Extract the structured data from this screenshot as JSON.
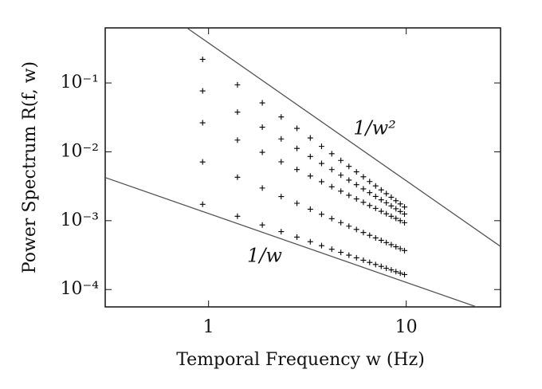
{
  "chart_data": {
    "type": "scatter",
    "x_label": "Temporal Frequency w (Hz)",
    "y_label": "Power Spectrum R(f, w)",
    "log_x": true,
    "log_y": true,
    "xlim": [
      0.3,
      30
    ],
    "ylim": [
      5.6e-05,
      0.63
    ],
    "xticks": [
      1,
      10
    ],
    "yticks": [
      {
        "value": 0.1,
        "label": "10⁻¹"
      },
      {
        "value": 0.01,
        "label": "10⁻²"
      },
      {
        "value": 0.001,
        "label": "10⁻³"
      },
      {
        "value": 0.0001,
        "label": "10⁻⁴"
      }
    ],
    "marker": "+",
    "x": [
      0.933,
      1.4,
      1.87,
      2.33,
      2.8,
      3.27,
      3.73,
      4.2,
      4.67,
      5.13,
      5.6,
      6.07,
      6.53,
      7,
      7.47,
      7.93,
      8.4,
      8.87,
      9.33,
      9.8
    ],
    "series": [
      {
        "color": "#000000",
        "values": [
          0.22,
          0.094,
          0.0514,
          0.0321,
          0.0219,
          0.0159,
          0.012,
          0.00938,
          0.0075,
          0.00615,
          0.00512,
          0.00433,
          0.0037,
          0.0032,
          0.0028,
          0.00247,
          0.00219,
          0.00195,
          0.00175,
          0.00158
        ]
      },
      {
        "color": "#000000",
        "values": [
          0.0766,
          0.0377,
          0.0228,
          0.0154,
          0.0112,
          0.00855,
          0.00678,
          0.00552,
          0.00458,
          0.00388,
          0.00333,
          0.0029,
          0.00255,
          0.00225,
          0.00201,
          0.00182,
          0.00164,
          0.00149,
          0.00136,
          0.00125
        ]
      },
      {
        "color": "#000000",
        "values": [
          0.0264,
          0.0148,
          0.00984,
          0.00716,
          0.00553,
          0.00445,
          0.00368,
          0.00311,
          0.00268,
          0.00234,
          0.00207,
          0.00185,
          0.00166,
          0.00151,
          0.00137,
          0.00126,
          0.00116,
          0.00108,
          0.001,
          0.000935
        ]
      },
      {
        "color": "#000000",
        "values": [
          0.00713,
          0.00428,
          0.00298,
          0.00224,
          0.00179,
          0.00147,
          0.00124,
          0.00107,
          0.000938,
          0.000832,
          0.000746,
          0.000673,
          0.000614,
          0.000562,
          0.000519,
          0.000481,
          0.000448,
          0.000418,
          0.000392,
          0.000368
        ]
      },
      {
        "color": "#000000",
        "values": [
          0.00173,
          0.00116,
          0.000867,
          0.000693,
          0.000578,
          0.000495,
          0.000434,
          0.000385,
          0.000347,
          0.000316,
          0.000289,
          0.000267,
          0.000248,
          0.000231,
          0.000217,
          0.000204,
          0.000193,
          0.000182,
          0.000173,
          0.000165
        ]
      }
    ],
    "lines": [
      {
        "label": "1/w²",
        "color": "#555555",
        "x": [
          0.777,
          30
        ],
        "values": [
          0.63,
          0.000422
        ]
      },
      {
        "label": "1/w",
        "color": "#555555",
        "x": [
          0.3,
          22.7
        ],
        "values": [
          0.00423,
          5.6e-05
        ]
      }
    ]
  }
}
